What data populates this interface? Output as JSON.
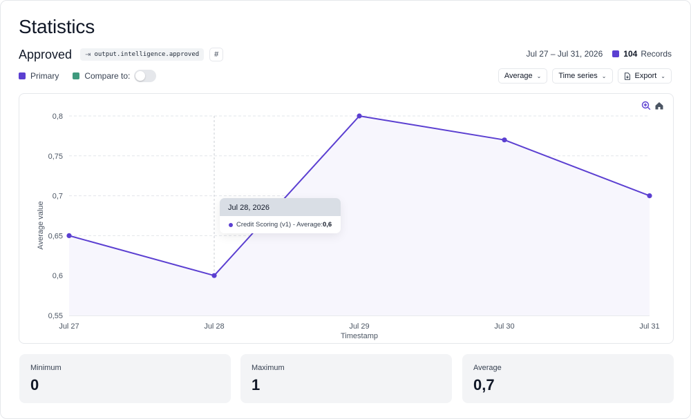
{
  "page": {
    "title": "Statistics"
  },
  "metric": {
    "name": "Approved",
    "source_chip": "output.intelligence.approved",
    "hash_label": "#"
  },
  "summary": {
    "date_range": "Jul 27 – Jul 31, 2026",
    "records_count": "104",
    "records_label": "Records"
  },
  "legend": {
    "primary": "Primary",
    "compare": "Compare to:",
    "compare_enabled": false
  },
  "controls": {
    "aggregation": "Average",
    "view": "Time series",
    "export": "Export"
  },
  "colors": {
    "primary": "#5b3fd1",
    "compare": "#3f9a7e",
    "fill": "#f7f6fd",
    "grid": "#e2e5ea"
  },
  "icons": {
    "zoom": "zoom-in-icon",
    "home": "home-icon",
    "export": "export-file-icon",
    "source": "arrow-right-from-bracket-icon",
    "chevron": "chevron-down-icon"
  },
  "tooltip": {
    "title": "Jul 28, 2026",
    "series_label": "Credit Scoring (v1) - Average:",
    "value": "0,6"
  },
  "chart_data": {
    "type": "line",
    "x": [
      "Jul 27",
      "Jul 28",
      "Jul 29",
      "Jul 30",
      "Jul 31"
    ],
    "series": [
      {
        "name": "Credit Scoring (v1)",
        "values": [
          0.65,
          0.6,
          0.8,
          0.77,
          0.7
        ]
      }
    ],
    "xlabel": "Timestamp",
    "ylabel": "Average value",
    "ylim": [
      0.55,
      0.8
    ],
    "yticks": [
      "0,55",
      "0,6",
      "0,65",
      "0,7",
      "0,75",
      "0,8"
    ],
    "ytick_values": [
      0.55,
      0.6,
      0.65,
      0.7,
      0.75,
      0.8
    ],
    "grid": true,
    "hover_index": 1
  },
  "stats": [
    {
      "label": "Minimum",
      "value": "0"
    },
    {
      "label": "Maximum",
      "value": "1"
    },
    {
      "label": "Average",
      "value": "0,7"
    }
  ]
}
